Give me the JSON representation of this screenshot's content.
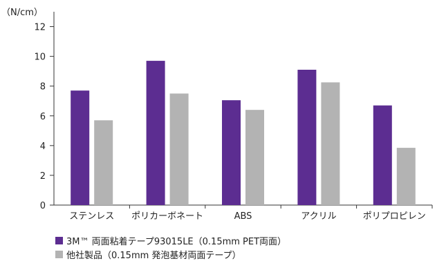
{
  "chart_data": {
    "type": "bar",
    "unit_label": "（N/cm）",
    "categories": [
      "ステンレス",
      "ポリカーボネート",
      "ABS",
      "アクリル",
      "ポリプロピレン"
    ],
    "series": [
      {
        "name": "3M™ 両面粘着テープ93015LE（0.15mm PET両面）",
        "color": "#5c2d91",
        "values": [
          7.7,
          9.7,
          7.05,
          9.1,
          6.7
        ]
      },
      {
        "name": "他社製品（0.15mm 発泡基材両面テープ）",
        "color": "#b3b3b3",
        "values": [
          5.7,
          7.5,
          6.4,
          8.25,
          3.85
        ]
      }
    ],
    "ylim": [
      0,
      13
    ],
    "yticks": [
      0,
      2,
      4,
      6,
      8,
      10,
      12
    ],
    "grid": false,
    "legend_position": "bottom-left"
  }
}
